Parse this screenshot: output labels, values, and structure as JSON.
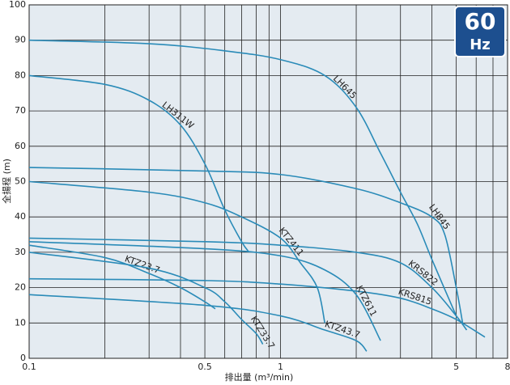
{
  "chart_data": {
    "type": "line",
    "x_label": "排出量 (m³/min)",
    "y_label": "全揚程 (m)",
    "badge": {
      "value": "60",
      "unit": "Hz"
    },
    "log_x": true,
    "grid": true,
    "color": "#2a8bb8",
    "xlim": [
      0.1,
      8
    ],
    "xticks": [
      0.1,
      0.5,
      1,
      5,
      8
    ],
    "xgrid_minor": [
      0.2,
      0.3,
      0.4,
      0.6,
      0.7,
      0.8,
      0.9,
      2,
      3,
      4,
      6,
      7
    ],
    "ylim": [
      0,
      100
    ],
    "yticks": [
      0,
      10,
      20,
      30,
      40,
      50,
      60,
      70,
      80,
      90,
      100
    ],
    "series": [
      {
        "name": "LH645",
        "x": [
          0.1,
          0.3,
          0.6,
          1,
          1.5,
          2,
          2.5,
          3,
          3.5,
          4,
          5
        ],
        "values": [
          90,
          89,
          87,
          84.5,
          80,
          71,
          58,
          47,
          38,
          28,
          12
        ]
      },
      {
        "name": "LH311W",
        "x": [
          0.1,
          0.2,
          0.3,
          0.4,
          0.5,
          0.6,
          0.7,
          0.75
        ],
        "values": [
          80,
          77.5,
          73,
          66,
          55,
          42,
          33,
          30
        ]
      },
      {
        "name": "LH845",
        "x": [
          0.1,
          0.5,
          1,
          2,
          3,
          4,
          4.5,
          5,
          5.3
        ],
        "values": [
          54,
          53,
          52,
          48,
          44,
          40,
          35,
          20,
          10
        ]
      },
      {
        "name": "KTZ411",
        "x": [
          0.1,
          0.3,
          0.5,
          0.7,
          1,
          1.2,
          1.4,
          1.5
        ],
        "values": [
          50,
          47,
          44,
          40,
          34,
          27,
          20,
          10
        ]
      },
      {
        "name": "KRS822",
        "x": [
          0.1,
          0.5,
          1,
          2,
          3,
          4,
          5,
          5.5
        ],
        "values": [
          34,
          33,
          32,
          30,
          27,
          20,
          12,
          8
        ]
      },
      {
        "name": "KRS815",
        "x": [
          0.1,
          0.5,
          1,
          2,
          3,
          4,
          5,
          6.5
        ],
        "values": [
          22.5,
          22,
          21,
          19,
          17,
          14,
          11,
          6
        ]
      },
      {
        "name": "KTZ611",
        "x": [
          0.1,
          0.5,
          1,
          1.5,
          2,
          2.5
        ],
        "values": [
          33,
          31,
          29,
          25,
          18,
          5
        ]
      },
      {
        "name": "KTZ23.7",
        "x": [
          0.1,
          0.2,
          0.3,
          0.4,
          0.5,
          0.55
        ],
        "values": [
          32,
          28.5,
          24,
          20,
          16,
          14
        ]
      },
      {
        "name": "KTZ33.7",
        "x": [
          0.1,
          0.3,
          0.5,
          0.6,
          0.7,
          0.8,
          0.85
        ],
        "values": [
          30,
          25.5,
          20,
          16,
          11,
          7,
          4
        ]
      },
      {
        "name": "KTZ43.7",
        "x": [
          0.1,
          0.5,
          1,
          1.5,
          2,
          2.2
        ],
        "values": [
          18,
          15,
          12,
          8,
          5,
          2
        ]
      }
    ]
  }
}
